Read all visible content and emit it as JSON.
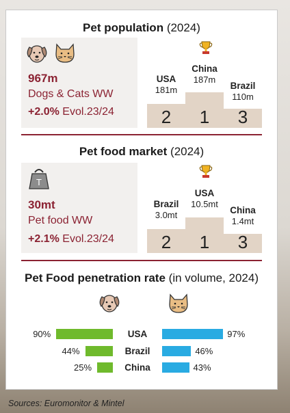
{
  "population": {
    "title_bold": "Pet population",
    "title_year": "(2024)",
    "headline": "967m",
    "label": "Dogs & Cats WW",
    "evo_value": "+2.0%",
    "evo_label": "Evol.23/24",
    "podium": [
      {
        "rank": "2",
        "country": "USA",
        "value": "181m"
      },
      {
        "rank": "1",
        "country": "China",
        "value": "187m"
      },
      {
        "rank": "3",
        "country": "Brazil",
        "value": "110m"
      }
    ]
  },
  "market": {
    "title_bold": "Pet food market",
    "title_year": "(2024)",
    "headline": "30mt",
    "label": "Pet food WW",
    "weight_letter": "T",
    "evo_value": "+2.1%",
    "evo_label": "Evol.23/24",
    "podium": [
      {
        "rank": "2",
        "country": "Brazil",
        "value": "3.0mt"
      },
      {
        "rank": "1",
        "country": "USA",
        "value": "10.5mt"
      },
      {
        "rank": "3",
        "country": "China",
        "value": "1.4mt"
      }
    ]
  },
  "penetration": {
    "title_bold": "Pet Food penetration rate",
    "title_rest": "(in volume, 2024)",
    "colors": {
      "dogs": "#6fba2c",
      "cats": "#29abe2"
    },
    "rows": [
      {
        "country": "USA",
        "dogs_label": "90%",
        "dogs": 90,
        "cats_label": "97%",
        "cats": 97
      },
      {
        "country": "Brazil",
        "dogs_label": "44%",
        "dogs": 44,
        "cats_label": "46%",
        "cats": 46
      },
      {
        "country": "China",
        "dogs_label": "25%",
        "dogs": 25,
        "cats_label": "43%",
        "cats": 43
      }
    ]
  },
  "sources": "Sources: Euromonitor & Mintel",
  "icons": [
    "dog-icon",
    "cat-icon",
    "trophy-icon",
    "weight-icon"
  ]
}
